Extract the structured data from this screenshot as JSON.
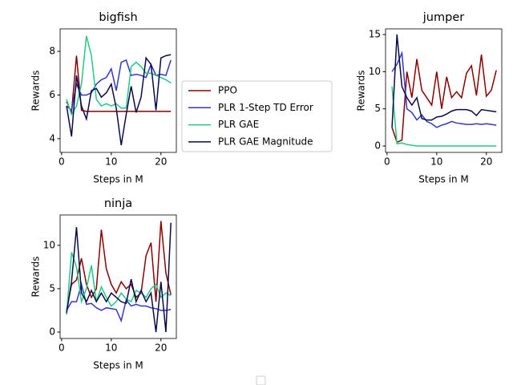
{
  "chart_data": [
    {
      "type": "line",
      "title": "bigfish",
      "x_label": "Steps in M",
      "y_label": "Rewards",
      "x": [
        1,
        2,
        3,
        4,
        5,
        6,
        7,
        8,
        9,
        10,
        11,
        12,
        13,
        14,
        15,
        16,
        17,
        18,
        19,
        20,
        21,
        22
      ],
      "xlim": [
        -0.3,
        23.1
      ],
      "xticks": [
        0,
        10,
        20
      ],
      "ylim": [
        3.37,
        9.03
      ],
      "yticks": [
        4,
        6,
        8
      ],
      "series": [
        {
          "name": "PPO",
          "color": "#8b0000",
          "values": [
            5.7,
            5.2,
            7.8,
            5.3,
            5.25,
            5.25,
            5.25,
            5.25,
            5.25,
            5.25,
            5.25,
            5.25,
            5.25,
            5.25,
            5.25,
            5.25,
            5.25,
            5.25,
            5.25,
            5.25,
            5.25,
            5.25
          ]
        },
        {
          "name": "PLR 1-Step TD Error",
          "color": "#3535cc",
          "values": [
            5.5,
            5.3,
            6.5,
            6.0,
            6.0,
            6.1,
            6.5,
            6.7,
            6.8,
            7.2,
            6.2,
            7.5,
            7.6,
            6.9,
            6.95,
            6.9,
            6.8,
            7.4,
            6.9,
            6.95,
            6.9,
            7.6
          ]
        },
        {
          "name": "PLR GAE",
          "color": "#1ecb82",
          "values": [
            5.8,
            5.1,
            5.5,
            6.5,
            8.7,
            7.8,
            5.8,
            5.5,
            5.6,
            5.5,
            5.6,
            5.4,
            5.4,
            7.3,
            7.5,
            7.3,
            7.0,
            7.0,
            6.9,
            6.8,
            6.7,
            6.55
          ]
        },
        {
          "name": "PLR GAE Magnitude",
          "color": "#0a0a4a",
          "values": [
            5.5,
            4.1,
            6.9,
            5.5,
            4.9,
            6.2,
            6.3,
            5.9,
            6.1,
            6.5,
            5.4,
            3.7,
            5.1,
            6.4,
            5.2,
            5.9,
            7.7,
            7.4,
            5.3,
            7.7,
            7.8,
            7.85
          ]
        }
      ]
    },
    {
      "type": "line",
      "title": "jumper",
      "x_label": "Steps in M",
      "y_label": "Rewards",
      "x": [
        1,
        2,
        3,
        4,
        5,
        6,
        7,
        8,
        9,
        10,
        11,
        12,
        13,
        14,
        15,
        16,
        17,
        18,
        19,
        20,
        21,
        22
      ],
      "xlim": [
        -0.3,
        23.1
      ],
      "xticks": [
        0,
        10,
        20
      ],
      "ylim": [
        -0.86,
        15.76
      ],
      "yticks": [
        0,
        5,
        10,
        15
      ],
      "series": [
        {
          "name": "PPO",
          "color": "#8b0000",
          "values": [
            2.5,
            0.5,
            0.8,
            10,
            6.5,
            11.7,
            7.5,
            6.5,
            5.5,
            10,
            5,
            9.3,
            6.5,
            7.3,
            6.5,
            9.8,
            10.8,
            6.8,
            12.3,
            6.7,
            7.5,
            10.2
          ]
        },
        {
          "name": "PLR 1-Step TD Error",
          "color": "#3535cc",
          "values": [
            10,
            11,
            12.5,
            5,
            4.5,
            3.5,
            4.2,
            3.3,
            3,
            2.5,
            2.8,
            3,
            3.3,
            3.1,
            3,
            2.9,
            2.9,
            3,
            2.9,
            3,
            2.9,
            2.8
          ]
        },
        {
          "name": "PLR GAE",
          "color": "#1ecb82",
          "values": [
            8,
            0.3,
            0.4,
            0.2,
            0.1,
            0,
            0,
            0,
            0,
            0,
            0,
            0,
            0,
            0,
            0,
            0,
            0,
            0,
            0,
            0,
            0,
            0
          ]
        },
        {
          "name": "PLR GAE Magnitude",
          "color": "#0a0a4a",
          "values": [
            2.5,
            15,
            8,
            6.5,
            5.5,
            6.5,
            3.7,
            3.5,
            3.5,
            3.9,
            4,
            4.3,
            4.7,
            4.9,
            4.9,
            4.9,
            4.7,
            4.1,
            4.9,
            4.8,
            4.7,
            4.6
          ]
        }
      ]
    },
    {
      "type": "line",
      "title": "ninja",
      "x_label": "Steps in M",
      "y_label": "Rewards",
      "x": [
        1,
        2,
        3,
        4,
        5,
        6,
        7,
        8,
        9,
        10,
        11,
        12,
        13,
        14,
        15,
        16,
        17,
        18,
        19,
        20,
        21,
        22
      ],
      "xlim": [
        -0.3,
        23.1
      ],
      "xticks": [
        0,
        10,
        20
      ],
      "ylim": [
        -0.74,
        13.5
      ],
      "yticks": [
        0,
        5,
        10
      ],
      "series": [
        {
          "name": "PPO",
          "color": "#8b0000",
          "values": [
            2.5,
            5.5,
            6,
            8.5,
            5.5,
            4,
            5,
            11.8,
            7.3,
            5.5,
            4.5,
            5.8,
            5,
            5.5,
            4,
            4.5,
            8.8,
            10.3,
            3.5,
            12.8,
            6.8,
            4.3
          ]
        },
        {
          "name": "PLR 1-Step TD Error",
          "color": "#3535cc",
          "values": [
            2.5,
            3.5,
            3.5,
            5.5,
            3.2,
            3.3,
            2.8,
            2.5,
            2.8,
            2.7,
            2.6,
            1.3,
            3.7,
            3.0,
            3.2,
            3.0,
            3.0,
            2.8,
            2.7,
            2.5,
            2.5,
            2.6
          ]
        },
        {
          "name": "PLR GAE",
          "color": "#1ecb82",
          "values": [
            2.0,
            9.2,
            7.5,
            3.5,
            5.0,
            7.7,
            3.5,
            5.2,
            4.0,
            3.0,
            3.5,
            4.5,
            3.8,
            3.5,
            4.8,
            4.5,
            4.0,
            5.0,
            5.5,
            4.0,
            4.5,
            4.2
          ]
        },
        {
          "name": "PLR GAE Magnitude",
          "color": "#0a0a4a",
          "values": [
            2.2,
            5.8,
            12.1,
            4.5,
            3.5,
            4.8,
            3.5,
            4.5,
            3.5,
            4.5,
            4.0,
            3.5,
            3.3,
            6.1,
            3.5,
            4.8,
            3.5,
            4.5,
            0.0,
            5.8,
            0.0,
            12.6
          ]
        }
      ]
    }
  ]
}
